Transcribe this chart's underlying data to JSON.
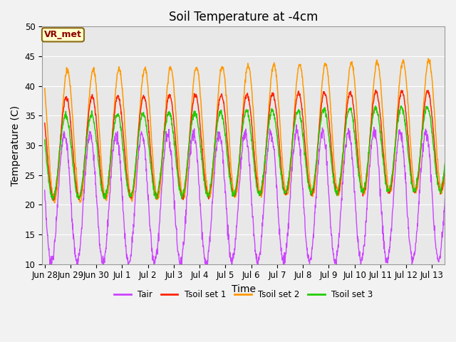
{
  "title": "Soil Temperature at -4cm",
  "xlabel": "Time",
  "ylabel": "Temperature (C)",
  "ylim": [
    10,
    50
  ],
  "tick_labels": [
    "Jun 28",
    "Jun 29",
    "Jun 30",
    "Jul 1",
    "Jul 2",
    "Jul 3",
    "Jul 4",
    "Jul 5",
    "Jul 6",
    "Jul 7",
    "Jul 8",
    "Jul 9",
    "Jul 10",
    "Jul 11",
    "Jul 12",
    "Jul 13"
  ],
  "tick_positions": [
    0,
    1,
    2,
    3,
    4,
    5,
    6,
    7,
    8,
    9,
    10,
    11,
    12,
    13,
    14,
    15
  ],
  "annotation_text": "VR_met",
  "annotation_box_facecolor": "#FFFFCC",
  "annotation_box_edgecolor": "#8B6914",
  "annotation_text_color": "#8B0000",
  "plot_bg_color": "#E8E8E8",
  "fig_bg_color": "#F2F2F2",
  "line_colors": {
    "Tair": "#CC44FF",
    "Tsoil1": "#FF2200",
    "Tsoil2": "#FF9900",
    "Tsoil3": "#22CC00"
  },
  "legend_labels": [
    "Tair",
    "Tsoil set 1",
    "Tsoil set 2",
    "Tsoil set 3"
  ],
  "title_fontsize": 12,
  "axis_label_fontsize": 10,
  "tick_fontsize": 8.5
}
